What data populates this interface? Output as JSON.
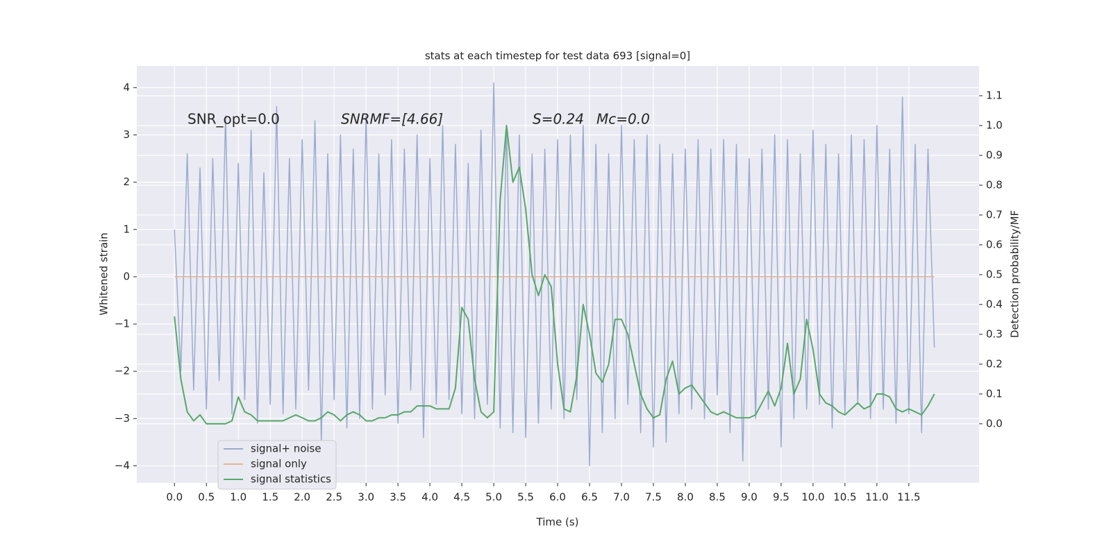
{
  "chart_data": {
    "type": "line",
    "title": "stats at each timestep for test data 693 [signal=0]",
    "xlabel": "Time (s)",
    "ylabel": "Whitened strain",
    "y2label": "Detection probability/MF",
    "annotations": [
      "SNR_opt=0.0",
      "SNRMF=[4.66]",
      "S=0.24",
      "Mc=0.0"
    ],
    "x": [
      0,
      0.1,
      0.2,
      0.3,
      0.4,
      0.5,
      0.6,
      0.7,
      0.8,
      0.9,
      1,
      1.1,
      1.2,
      1.3,
      1.4,
      1.5,
      1.6,
      1.7,
      1.8,
      1.9,
      2,
      2.1,
      2.2,
      2.3,
      2.4,
      2.5,
      2.6,
      2.7,
      2.8,
      2.9,
      3,
      3.1,
      3.2,
      3.3,
      3.4,
      3.5,
      3.6,
      3.7,
      3.8,
      3.9,
      4,
      4.1,
      4.2,
      4.3,
      4.4,
      4.5,
      4.6,
      4.7,
      4.8,
      4.9,
      5,
      5.1,
      5.2,
      5.3,
      5.4,
      5.5,
      5.6,
      5.7,
      5.8,
      5.9,
      6,
      6.1,
      6.2,
      6.3,
      6.4,
      6.5,
      6.6,
      6.7,
      6.8,
      6.9,
      7,
      7.1,
      7.2,
      7.3,
      7.4,
      7.5,
      7.6,
      7.7,
      7.8,
      7.9,
      8,
      8.1,
      8.2,
      8.3,
      8.4,
      8.5,
      8.6,
      8.7,
      8.8,
      8.9,
      9,
      9.1,
      9.2,
      9.3,
      9.4,
      9.5,
      9.6,
      9.7,
      9.8,
      9.9,
      10,
      10.1,
      10.2,
      10.3,
      10.4,
      10.5,
      10.6,
      10.7,
      10.8,
      10.9,
      11,
      11.1,
      11.2,
      11.3,
      11.4,
      11.5,
      11.6,
      11.7,
      11.8,
      11.9
    ],
    "series": [
      {
        "name": "signal+ noise",
        "color": "#9aabd0",
        "values": [
          1.0,
          -2.0,
          2.6,
          -2.4,
          2.3,
          -2.8,
          2.5,
          -2.2,
          3.4,
          -2.9,
          2.4,
          -2.6,
          3.1,
          -3.1,
          2.2,
          -2.7,
          3.6,
          -2.9,
          2.5,
          -2.8,
          2.9,
          -2.4,
          3.3,
          -3.5,
          2.6,
          -2.6,
          3.0,
          -3.2,
          2.7,
          -3.0,
          3.4,
          -2.8,
          2.6,
          -2.5,
          2.9,
          -3.1,
          2.7,
          -2.4,
          3.0,
          -3.4,
          2.5,
          -2.7,
          3.2,
          -2.6,
          2.8,
          -2.9,
          2.4,
          -3.0,
          3.1,
          -2.7,
          4.1,
          -3.2,
          3.2,
          -3.3,
          3.0,
          -3.4,
          2.6,
          -3.1,
          2.7,
          -2.8,
          2.9,
          -3.0,
          3.0,
          -2.6,
          3.2,
          -4.0,
          2.8,
          -3.3,
          2.6,
          -3.0,
          3.2,
          -2.7,
          2.9,
          -3.3,
          3.0,
          -3.6,
          2.8,
          -3.5,
          2.6,
          -2.9,
          2.7,
          -2.8,
          2.9,
          -3.0,
          2.7,
          -2.5,
          2.9,
          -3.3,
          2.8,
          -3.9,
          2.5,
          -3.0,
          2.7,
          -2.8,
          3.0,
          -3.6,
          2.9,
          -3.0,
          2.6,
          -2.8,
          3.1,
          -2.7,
          2.8,
          -3.2,
          2.6,
          -2.9,
          3.0,
          -2.7,
          2.9,
          -3.0,
          3.2,
          -2.8,
          2.7,
          -3.1,
          3.8,
          -2.9,
          2.8,
          -3.3,
          2.7,
          -1.5
        ]
      },
      {
        "name": "signal only",
        "color": "#e8b295",
        "values": [
          0,
          0,
          0,
          0,
          0,
          0,
          0,
          0,
          0,
          0,
          0,
          0,
          0,
          0,
          0,
          0,
          0,
          0,
          0,
          0,
          0,
          0,
          0,
          0,
          0,
          0,
          0,
          0,
          0,
          0,
          0,
          0,
          0,
          0,
          0,
          0,
          0,
          0,
          0,
          0,
          0,
          0,
          0,
          0,
          0,
          0,
          0,
          0,
          0,
          0,
          0,
          0,
          0,
          0,
          0,
          0,
          0,
          0,
          0,
          0,
          0,
          0,
          0,
          0,
          0,
          0,
          0,
          0,
          0,
          0,
          0,
          0,
          0,
          0,
          0,
          0,
          0,
          0,
          0,
          0,
          0,
          0,
          0,
          0,
          0,
          0,
          0,
          0,
          0,
          0,
          0,
          0,
          0,
          0,
          0,
          0,
          0,
          0,
          0,
          0,
          0,
          0,
          0,
          0,
          0,
          0,
          0,
          0,
          0,
          0,
          0,
          0,
          0,
          0,
          0,
          0,
          0,
          0,
          0,
          0
        ]
      },
      {
        "name": "signal statistics",
        "color": "#55a868",
        "axis": "y2",
        "values": [
          0.36,
          0.15,
          0.04,
          0.01,
          0.03,
          0.0,
          0.0,
          0.0,
          0.0,
          0.01,
          0.09,
          0.04,
          0.03,
          0.01,
          0.01,
          0.01,
          0.01,
          0.01,
          0.02,
          0.03,
          0.02,
          0.01,
          0.01,
          0.02,
          0.04,
          0.03,
          0.01,
          0.03,
          0.04,
          0.03,
          0.01,
          0.01,
          0.02,
          0.02,
          0.03,
          0.03,
          0.04,
          0.04,
          0.06,
          0.06,
          0.06,
          0.05,
          0.05,
          0.05,
          0.12,
          0.39,
          0.35,
          0.15,
          0.04,
          0.02,
          0.04,
          0.75,
          1.0,
          0.81,
          0.86,
          0.72,
          0.5,
          0.43,
          0.5,
          0.46,
          0.2,
          0.05,
          0.04,
          0.16,
          0.4,
          0.3,
          0.17,
          0.14,
          0.2,
          0.35,
          0.35,
          0.3,
          0.2,
          0.1,
          0.05,
          0.02,
          0.03,
          0.15,
          0.21,
          0.1,
          0.12,
          0.13,
          0.1,
          0.07,
          0.04,
          0.03,
          0.04,
          0.03,
          0.02,
          0.02,
          0.02,
          0.03,
          0.07,
          0.11,
          0.06,
          0.12,
          0.27,
          0.1,
          0.15,
          0.35,
          0.25,
          0.1,
          0.07,
          0.06,
          0.04,
          0.03,
          0.05,
          0.07,
          0.05,
          0.06,
          0.1,
          0.1,
          0.09,
          0.05,
          0.04,
          0.05,
          0.04,
          0.03,
          0.06,
          0.1
        ]
      }
    ],
    "xlim": [
      -0.59,
      12.6
    ],
    "xticks": [
      {
        "value": 0,
        "label": "0.0"
      },
      {
        "value": 0.5,
        "label": "0.5"
      },
      {
        "value": 1,
        "label": "1.0"
      },
      {
        "value": 1.5,
        "label": "1.5"
      },
      {
        "value": 2,
        "label": "2.0"
      },
      {
        "value": 2.5,
        "label": "2.5"
      },
      {
        "value": 3,
        "label": "3.0"
      },
      {
        "value": 3.5,
        "label": "3.5"
      },
      {
        "value": 4,
        "label": "4.0"
      },
      {
        "value": 4.5,
        "label": "4.5"
      },
      {
        "value": 5,
        "label": "5.0"
      },
      {
        "value": 5.5,
        "label": "5.5"
      },
      {
        "value": 6,
        "label": "6.0"
      },
      {
        "value": 6.5,
        "label": "6.5"
      },
      {
        "value": 7,
        "label": "7.0"
      },
      {
        "value": 7.5,
        "label": "7.5"
      },
      {
        "value": 8,
        "label": "8.0"
      },
      {
        "value": 8.5,
        "label": "8.5"
      },
      {
        "value": 9,
        "label": "9.0"
      },
      {
        "value": 9.5,
        "label": "9.5"
      },
      {
        "value": 10,
        "label": "10.0"
      },
      {
        "value": 10.5,
        "label": "10.5"
      },
      {
        "value": 11,
        "label": "11.0"
      },
      {
        "value": 11.5,
        "label": "11.5"
      }
    ],
    "ylim": [
      -4.36,
      4.46
    ],
    "yticks": [
      {
        "value": -4,
        "label": "−4"
      },
      {
        "value": -3,
        "label": "−3"
      },
      {
        "value": -2,
        "label": "−2"
      },
      {
        "value": -1,
        "label": "−1"
      },
      0,
      1,
      2,
      3,
      4
    ],
    "y2lim": [
      -0.198,
      1.2
    ],
    "y2ticks": [
      {
        "value": 0,
        "label": "0.0"
      },
      {
        "value": 0.1,
        "label": "0.1"
      },
      {
        "value": 0.2,
        "label": "0.2"
      },
      {
        "value": 0.3,
        "label": "0.3"
      },
      {
        "value": 0.4,
        "label": "0.4"
      },
      {
        "value": 0.5,
        "label": "0.5"
      },
      {
        "value": 0.6,
        "label": "0.6"
      },
      {
        "value": 0.7,
        "label": "0.7"
      },
      {
        "value": 0.8,
        "label": "0.8"
      },
      {
        "value": 0.9,
        "label": "0.9"
      },
      {
        "value": 1,
        "label": "1.0"
      },
      {
        "value": 1.1,
        "label": "1.1"
      }
    ],
    "grid": true,
    "legend": "lower left"
  }
}
